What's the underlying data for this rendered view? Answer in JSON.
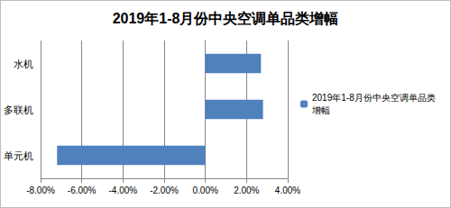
{
  "chart_data": {
    "type": "bar",
    "orientation": "horizontal",
    "title": "2019年1-8月份中央空调单品类增幅",
    "categories": [
      "水机",
      "多联机",
      "单元机"
    ],
    "series": [
      {
        "name": "2019年1-8月份中央空调单品类增幅",
        "color": "#4f81bd",
        "values": [
          2.7,
          2.8,
          -7.2
        ]
      }
    ],
    "xlim": [
      -8,
      4
    ],
    "xticks": [
      {
        "value": -8,
        "label": "-8.00%"
      },
      {
        "value": -6,
        "label": "-6.00%"
      },
      {
        "value": -4,
        "label": "-4.00%"
      },
      {
        "value": -2,
        "label": "-2.00%"
      },
      {
        "value": 0,
        "label": "0.00%"
      },
      {
        "value": 2,
        "label": "2.00%"
      },
      {
        "value": 4,
        "label": "4.00%"
      }
    ],
    "grid": true,
    "legend": "right"
  }
}
